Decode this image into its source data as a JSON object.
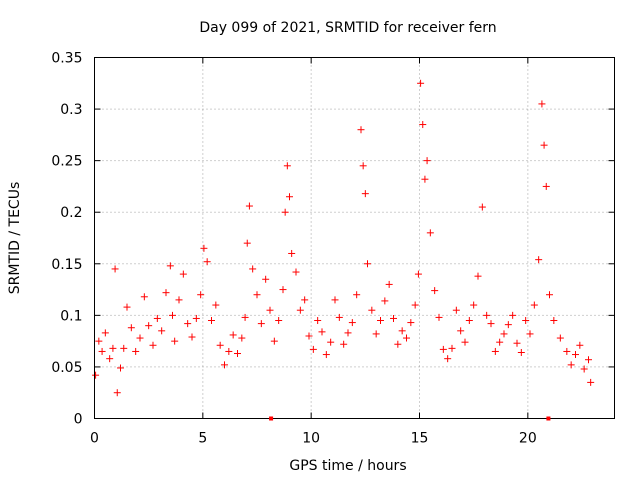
{
  "chart_data": {
    "type": "scatter",
    "title": "Day 099 of 2021, SRMTID for receiver fern",
    "xlabel": "GPS time / hours",
    "ylabel": "SRMTID / TECUs",
    "xlim": [
      0,
      24
    ],
    "ylim": [
      0,
      0.35
    ],
    "x_ticks": [
      0,
      5,
      10,
      15,
      20
    ],
    "x_tick_labels": [
      "0",
      "5",
      "10",
      "15",
      "20"
    ],
    "y_ticks": [
      0,
      0.05,
      0.1,
      0.15,
      0.2,
      0.25,
      0.3,
      0.35
    ],
    "y_tick_labels": [
      "0",
      "0.05",
      "0.1",
      "0.15",
      "0.2",
      "0.25",
      "0.3",
      "0.35"
    ],
    "grid": true,
    "marker": "+",
    "color": "#ff0000",
    "gap_markers_x": [
      8.15,
      20.95
    ],
    "series": [
      {
        "name": "SRMTID",
        "x": [
          0.05,
          0.2,
          0.35,
          0.5,
          0.7,
          0.85,
          0.95,
          1.05,
          1.2,
          1.35,
          1.5,
          1.7,
          1.9,
          2.1,
          2.3,
          2.5,
          2.7,
          2.9,
          3.1,
          3.3,
          3.5,
          3.6,
          3.7,
          3.9,
          4.1,
          4.3,
          4.5,
          4.7,
          4.9,
          5.05,
          5.2,
          5.4,
          5.6,
          5.8,
          6.0,
          6.2,
          6.4,
          6.6,
          6.8,
          6.95,
          7.05,
          7.15,
          7.3,
          7.5,
          7.7,
          7.9,
          8.1,
          8.3,
          8.5,
          8.7,
          8.8,
          8.9,
          9.0,
          9.1,
          9.3,
          9.5,
          9.7,
          9.9,
          10.1,
          10.3,
          10.5,
          10.7,
          10.9,
          11.1,
          11.3,
          11.5,
          11.7,
          11.9,
          12.1,
          12.3,
          12.4,
          12.5,
          12.6,
          12.8,
          13.0,
          13.2,
          13.4,
          13.6,
          13.8,
          14.0,
          14.2,
          14.4,
          14.6,
          14.8,
          14.95,
          15.05,
          15.15,
          15.25,
          15.35,
          15.5,
          15.7,
          15.9,
          16.1,
          16.3,
          16.5,
          16.7,
          16.9,
          17.1,
          17.3,
          17.5,
          17.7,
          17.9,
          18.1,
          18.3,
          18.5,
          18.7,
          18.9,
          19.1,
          19.3,
          19.5,
          19.7,
          19.9,
          20.1,
          20.3,
          20.5,
          20.65,
          20.75,
          20.85,
          21.0,
          21.2,
          21.5,
          21.8,
          22.0,
          22.2,
          22.4,
          22.6,
          22.8,
          22.9
        ],
        "y": [
          0.042,
          0.075,
          0.065,
          0.083,
          0.058,
          0.068,
          0.145,
          0.025,
          0.049,
          0.068,
          0.108,
          0.088,
          0.065,
          0.078,
          0.118,
          0.09,
          0.071,
          0.097,
          0.085,
          0.122,
          0.148,
          0.1,
          0.075,
          0.115,
          0.14,
          0.092,
          0.079,
          0.097,
          0.12,
          0.165,
          0.152,
          0.095,
          0.11,
          0.071,
          0.052,
          0.065,
          0.081,
          0.063,
          0.078,
          0.098,
          0.17,
          0.206,
          0.145,
          0.12,
          0.092,
          0.135,
          0.105,
          0.075,
          0.095,
          0.125,
          0.2,
          0.245,
          0.215,
          0.16,
          0.142,
          0.105,
          0.115,
          0.08,
          0.067,
          0.095,
          0.084,
          0.062,
          0.074,
          0.115,
          0.098,
          0.072,
          0.083,
          0.093,
          0.12,
          0.28,
          0.245,
          0.218,
          0.15,
          0.105,
          0.082,
          0.095,
          0.114,
          0.13,
          0.097,
          0.072,
          0.085,
          0.078,
          0.093,
          0.11,
          0.14,
          0.325,
          0.285,
          0.232,
          0.25,
          0.18,
          0.124,
          0.098,
          0.067,
          0.058,
          0.068,
          0.105,
          0.085,
          0.074,
          0.095,
          0.11,
          0.138,
          0.205,
          0.1,
          0.092,
          0.065,
          0.074,
          0.082,
          0.091,
          0.1,
          0.073,
          0.064,
          0.095,
          0.082,
          0.11,
          0.154,
          0.305,
          0.265,
          0.225,
          0.12,
          0.095,
          0.078,
          0.065,
          0.052,
          0.062,
          0.071,
          0.048,
          0.057,
          0.035
        ]
      }
    ]
  }
}
